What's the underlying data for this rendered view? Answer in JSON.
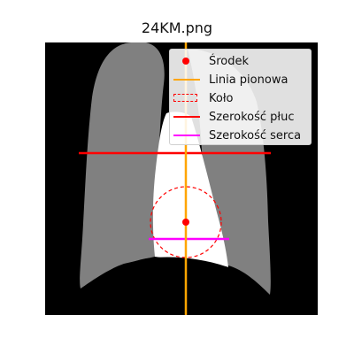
{
  "title": "24KM.png",
  "colors": {
    "background": "#000000",
    "lung": "#808080",
    "heart": "#ffffff",
    "center_point": "#ff0000",
    "vertical_line": "#ffa500",
    "circle": "#ff0000",
    "lung_width": "#ff0000",
    "heart_width": "#ff00ff"
  },
  "legend": {
    "items": [
      {
        "label": "Środek",
        "symbol": "dot-icon"
      },
      {
        "label": "Linia pionowa",
        "symbol": "orange-line-icon"
      },
      {
        "label": "Koło",
        "symbol": "dashed-box-icon"
      },
      {
        "label": "Szerokość płuc",
        "symbol": "red-line-icon"
      },
      {
        "label": "Szerokość serca",
        "symbol": "magenta-line-icon"
      }
    ]
  }
}
